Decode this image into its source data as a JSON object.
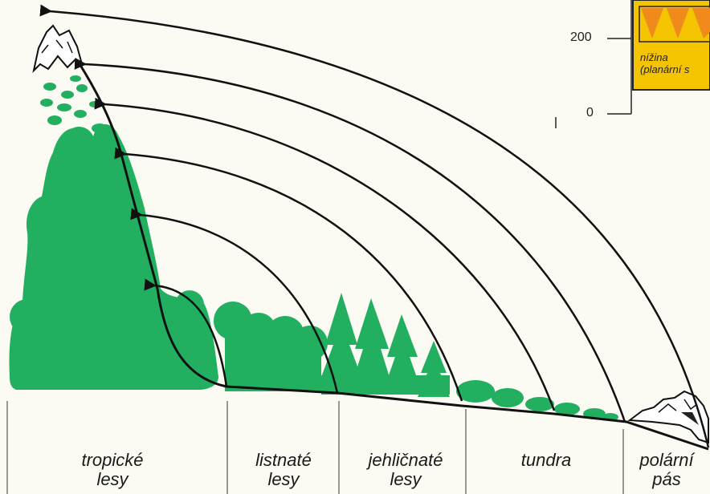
{
  "colors": {
    "vegetation": "#22b060",
    "vegetation_dark": "#168a48",
    "line": "#111111",
    "legend_fill": "#f5c400",
    "legend_triangle": "#f08a1c",
    "background": "#fbfaf3"
  },
  "zones": [
    {
      "line1": "tropické",
      "line2": "lesy"
    },
    {
      "line1": "listnaté",
      "line2": "lesy"
    },
    {
      "line1": "jehličnaté",
      "line2": "lesy"
    },
    {
      "line1": "tundra",
      "line2": ""
    },
    {
      "line1": "polární",
      "line2": "pás"
    }
  ],
  "altitude_scale": {
    "ticks": [
      "200",
      "0"
    ]
  },
  "legend": {
    "line1": "nížina",
    "line2": "(planární s"
  }
}
